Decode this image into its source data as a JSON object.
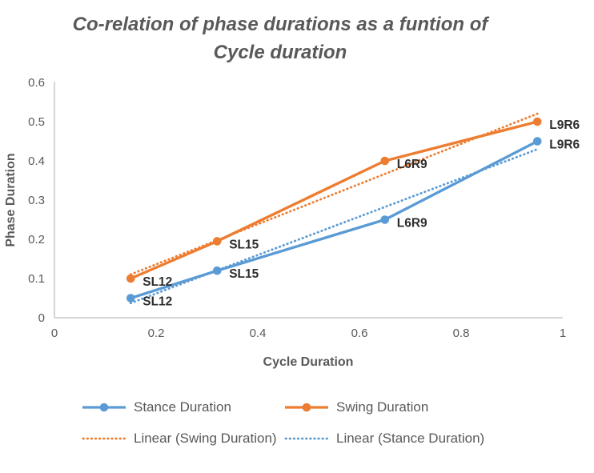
{
  "title_lines": [
    "Co-relation of phase durations as a funtion of",
    "Cycle duration"
  ],
  "colors": {
    "stance": "#5B9BD5",
    "swing": "#ED7D31",
    "text": "#595959",
    "data_label": "#2e2e2e",
    "axis_line": "#BFBFBF"
  },
  "chart_data": {
    "type": "line",
    "title": "Co-relation of phase durations as a funtion of Cycle duration",
    "xlabel": "Cycle Duration",
    "ylabel": "Phase Duration",
    "xlim": [
      0,
      1
    ],
    "ylim": [
      0,
      0.6
    ],
    "x_tick_values": [
      0,
      0.2,
      0.4,
      0.6,
      0.8,
      1
    ],
    "x_tick_labels": [
      "0",
      "0.2",
      "0.4",
      "0.6",
      "0.8",
      "1"
    ],
    "y_tick_values": [
      0,
      0.1,
      0.2,
      0.3,
      0.4,
      0.5,
      0.6
    ],
    "y_tick_labels": [
      "0",
      "0.1",
      "0.2",
      "0.3",
      "0.4",
      "0.5",
      "0.6"
    ],
    "x": [
      0.15,
      0.32,
      0.65,
      0.95
    ],
    "point_labels": [
      "SL12",
      "SL15",
      "L6R9",
      "L9R6"
    ],
    "series": [
      {
        "name": "Stance Duration",
        "color_key": "stance",
        "values": [
          0.05,
          0.12,
          0.25,
          0.45
        ]
      },
      {
        "name": "Swing Duration",
        "color_key": "swing",
        "values": [
          0.1,
          0.195,
          0.4,
          0.5
        ]
      }
    ],
    "trendlines": [
      {
        "name": "Linear (Swing Duration)",
        "series": "Swing Duration",
        "color_key": "swing"
      },
      {
        "name": "Linear (Stance Duration)",
        "series": "Stance Duration",
        "color_key": "stance"
      }
    ],
    "legend_position": "bottom",
    "grid": false
  },
  "legend": {
    "items": [
      {
        "label": "Stance Duration"
      },
      {
        "label": "Swing Duration"
      },
      {
        "label": "Linear (Swing Duration)"
      },
      {
        "label": "Linear (Stance Duration)"
      }
    ]
  }
}
